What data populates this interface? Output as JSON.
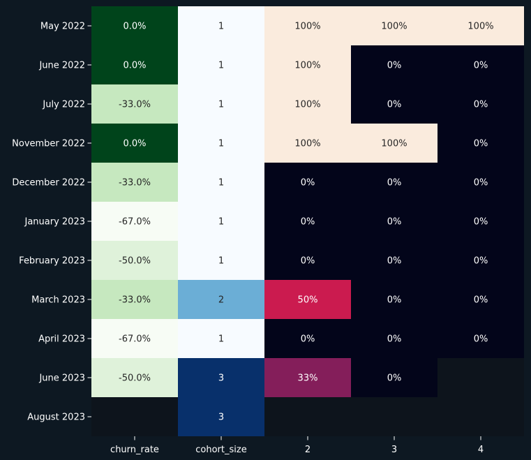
{
  "chart_data": {
    "type": "heatmap",
    "row_labels": [
      "May 2022",
      "June 2022",
      "July 2022",
      "November 2022",
      "December 2022",
      "January 2023",
      "February 2023",
      "March 2023",
      "April 2023",
      "June 2023",
      "August 2023"
    ],
    "column_labels": [
      "churn_rate",
      "cohort_size",
      "2",
      "3",
      "4"
    ],
    "cell_text": [
      [
        "0.0%",
        "1",
        "100%",
        "100%",
        "100%"
      ],
      [
        "0.0%",
        "1",
        "100%",
        "0%",
        "0%"
      ],
      [
        "-33.0%",
        "1",
        "100%",
        "0%",
        "0%"
      ],
      [
        "0.0%",
        "1",
        "100%",
        "100%",
        "0%"
      ],
      [
        "-33.0%",
        "1",
        "0%",
        "0%",
        "0%"
      ],
      [
        "-67.0%",
        "1",
        "0%",
        "0%",
        "0%"
      ],
      [
        "-50.0%",
        "1",
        "0%",
        "0%",
        "0%"
      ],
      [
        "-33.0%",
        "2",
        "50%",
        "0%",
        "0%"
      ],
      [
        "-67.0%",
        "1",
        "0%",
        "0%",
        "0%"
      ],
      [
        "-50.0%",
        "3",
        "33%",
        "0%",
        ""
      ],
      [
        "",
        "3",
        "",
        "",
        ""
      ]
    ],
    "churn_rate": [
      0.0,
      0.0,
      -33.0,
      0.0,
      -33.0,
      -67.0,
      -50.0,
      -33.0,
      -67.0,
      -50.0,
      null
    ],
    "cohort_size": [
      1,
      1,
      1,
      1,
      1,
      1,
      1,
      2,
      1,
      3,
      3
    ],
    "retention": [
      [
        100,
        100,
        100
      ],
      [
        100,
        0,
        0
      ],
      [
        100,
        0,
        0
      ],
      [
        100,
        100,
        0
      ],
      [
        0,
        0,
        0
      ],
      [
        0,
        0,
        0
      ],
      [
        0,
        0,
        0
      ],
      [
        50,
        0,
        0
      ],
      [
        0,
        0,
        0
      ],
      [
        33,
        0,
        null
      ],
      [
        null,
        null,
        null
      ]
    ],
    "colormaps": {
      "churn_rate": "Greens (reversed)",
      "cohort_size": "Blues",
      "retention": "rocket"
    },
    "colors": {
      "background": "#0d1822",
      "missing": "#0d141c",
      "text_light": "#ffffff",
      "text_dark": "#262626"
    }
  }
}
